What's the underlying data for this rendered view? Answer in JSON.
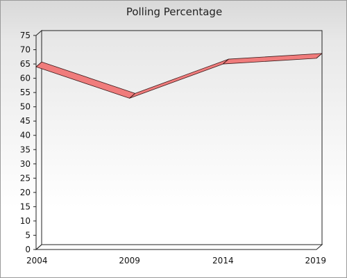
{
  "chart_data": {
    "type": "line",
    "title": "Polling Percentage",
    "xlabel": "",
    "ylabel": "",
    "categories": [
      "2004",
      "2009",
      "2014",
      "2019"
    ],
    "series": [
      {
        "values": [
          64,
          53,
          65,
          67
        ]
      }
    ],
    "ylim": [
      0,
      75
    ],
    "yticks": [
      0,
      5,
      10,
      15,
      20,
      25,
      30,
      35,
      40,
      45,
      50,
      55,
      60,
      65,
      70,
      75
    ],
    "grid": false,
    "legend": "none",
    "style": "3d-ribbon",
    "colors": {
      "series_fill": "#f07c7c",
      "series_edge": "#3a1a1a",
      "axis": "#222222",
      "background_top": "#d9d9d9",
      "background_bottom": "#ffffff"
    }
  }
}
